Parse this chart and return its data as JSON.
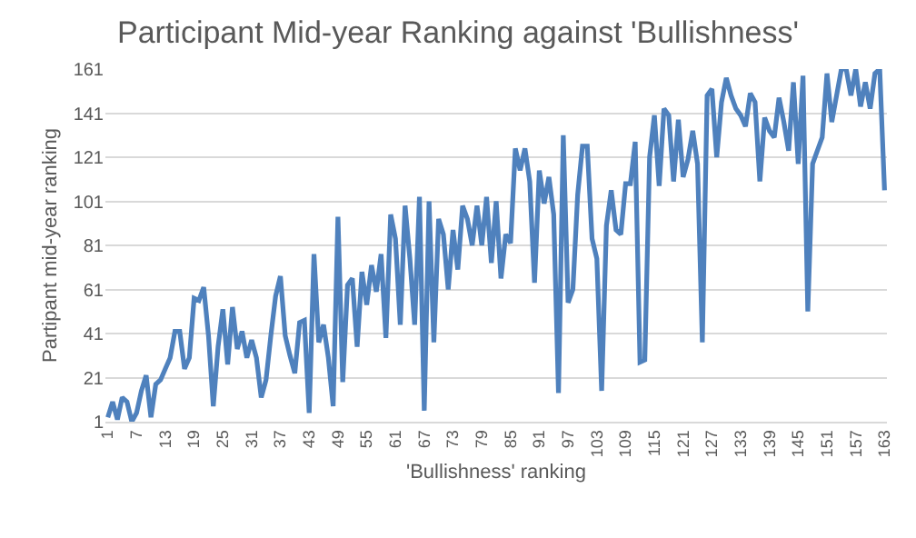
{
  "chart_data": {
    "type": "line",
    "title": "Participant Mid-year Ranking against 'Bullishness'",
    "xlabel": "'Bullishness' ranking",
    "ylabel": "Partipant mid-year ranking",
    "categories": [
      "1",
      null,
      null,
      null,
      null,
      null,
      "7",
      null,
      null,
      null,
      null,
      null,
      "13",
      null,
      null,
      null,
      null,
      null,
      "19",
      null,
      null,
      null,
      null,
      null,
      "25",
      null,
      null,
      null,
      null,
      null,
      "31",
      null,
      null,
      null,
      null,
      null,
      "37",
      null,
      null,
      null,
      null,
      null,
      "43",
      null,
      null,
      null,
      null,
      null,
      "49",
      null,
      null,
      null,
      null,
      null,
      "55",
      null,
      null,
      null,
      null,
      null,
      "61",
      null,
      null,
      null,
      null,
      null,
      "67",
      null,
      null,
      null,
      null,
      null,
      "73",
      null,
      null,
      null,
      null,
      null,
      "79",
      null,
      null,
      null,
      null,
      null,
      "85",
      null,
      null,
      null,
      null,
      null,
      "91",
      null,
      null,
      null,
      null,
      null,
      "97",
      null,
      null,
      null,
      null,
      null,
      "103",
      null,
      null,
      null,
      null,
      null,
      "109",
      null,
      null,
      null,
      null,
      null,
      "115",
      null,
      null,
      null,
      null,
      null,
      "121",
      null,
      null,
      null,
      null,
      null,
      "127",
      null,
      null,
      null,
      null,
      null,
      "133",
      null,
      null,
      null,
      null,
      null,
      "139",
      null,
      null,
      null,
      null,
      null,
      "145",
      null,
      null,
      null,
      null,
      null,
      "151",
      null,
      null,
      null,
      null,
      null,
      "157",
      null,
      null,
      null,
      null,
      null,
      "163"
    ],
    "series": [
      {
        "color": "#4f81bd",
        "values": [
          3,
          10,
          2,
          12,
          10,
          1,
          5,
          15,
          22,
          3,
          18,
          20,
          25,
          30,
          42,
          42,
          25,
          30,
          57,
          56,
          62,
          40,
          8,
          35,
          52,
          27,
          53,
          34,
          42,
          30,
          38,
          30,
          12,
          20,
          40,
          58,
          67,
          40,
          31,
          23,
          46,
          47,
          5,
          77,
          37,
          45,
          30,
          8,
          94,
          19,
          63,
          66,
          35,
          69,
          54,
          72,
          60,
          77,
          39,
          95,
          84,
          45,
          99,
          75,
          45,
          103,
          6,
          101,
          37,
          93,
          86,
          61,
          88,
          70,
          99,
          93,
          81,
          99,
          81,
          103,
          73,
          101,
          66,
          86,
          82,
          125,
          115,
          125,
          110,
          64,
          115,
          100,
          112,
          95,
          14,
          131,
          55,
          61,
          104,
          126,
          126,
          84,
          75,
          15,
          90,
          106,
          88,
          86,
          109,
          109,
          128,
          28,
          29,
          121,
          140,
          108,
          143,
          140,
          110,
          138,
          112,
          120,
          133,
          118,
          37,
          149,
          152,
          121,
          146,
          157,
          149,
          143,
          140,
          135,
          150,
          146,
          110,
          139,
          133,
          130,
          148,
          137,
          124,
          155,
          118,
          158,
          51,
          118,
          124,
          130,
          159,
          137,
          149,
          161,
          161,
          149,
          161,
          144,
          155,
          143,
          159,
          161,
          106
        ]
      }
    ],
    "ylim": [
      1,
      161
    ],
    "yticks": [
      1,
      21,
      41,
      61,
      81,
      101,
      121,
      141,
      161
    ],
    "grid": "y",
    "marker": "none",
    "line_style": "solid"
  }
}
